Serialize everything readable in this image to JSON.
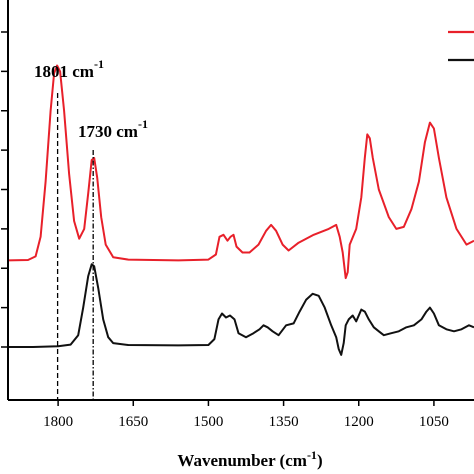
{
  "chart_data": {
    "type": "line",
    "title": "",
    "xlabel": "Wavenumber (cm",
    "xlabel_sup": "-1",
    "xlabel_close": ")",
    "ylabel": "",
    "x_reversed": true,
    "xlim": [
      1900,
      970
    ],
    "ylim": [
      0,
      8
    ],
    "grid": false,
    "legend_placement": "top-right",
    "x_ticks": [
      1800,
      1650,
      1500,
      1350,
      1200,
      1050
    ],
    "x_tick_labels": [
      "1800",
      "1650",
      "1500",
      "1350",
      "1200",
      "1050"
    ],
    "y_ticks": [
      1,
      2,
      3,
      4,
      5,
      6,
      7,
      8
    ],
    "series": [
      {
        "color": "#e8202a",
        "points": [
          [
            1900,
            2.2
          ],
          [
            1860,
            2.21
          ],
          [
            1845,
            2.3
          ],
          [
            1835,
            2.8
          ],
          [
            1825,
            4.2
          ],
          [
            1815,
            6.0
          ],
          [
            1808,
            6.95
          ],
          [
            1802,
            7.15
          ],
          [
            1796,
            7.0
          ],
          [
            1788,
            6.0
          ],
          [
            1778,
            4.4
          ],
          [
            1768,
            3.2
          ],
          [
            1758,
            2.75
          ],
          [
            1748,
            3.0
          ],
          [
            1740,
            3.9
          ],
          [
            1733,
            4.75
          ],
          [
            1728,
            4.8
          ],
          [
            1722,
            4.3
          ],
          [
            1714,
            3.3
          ],
          [
            1705,
            2.6
          ],
          [
            1690,
            2.28
          ],
          [
            1660,
            2.22
          ],
          [
            1560,
            2.2
          ],
          [
            1500,
            2.22
          ],
          [
            1485,
            2.35
          ],
          [
            1478,
            2.8
          ],
          [
            1470,
            2.85
          ],
          [
            1462,
            2.7
          ],
          [
            1456,
            2.8
          ],
          [
            1450,
            2.85
          ],
          [
            1444,
            2.55
          ],
          [
            1432,
            2.4
          ],
          [
            1418,
            2.4
          ],
          [
            1400,
            2.6
          ],
          [
            1385,
            2.95
          ],
          [
            1375,
            3.1
          ],
          [
            1365,
            2.95
          ],
          [
            1352,
            2.6
          ],
          [
            1340,
            2.45
          ],
          [
            1320,
            2.65
          ],
          [
            1290,
            2.85
          ],
          [
            1260,
            3.0
          ],
          [
            1245,
            3.1
          ],
          [
            1238,
            2.8
          ],
          [
            1232,
            2.4
          ],
          [
            1226,
            1.75
          ],
          [
            1222,
            1.9
          ],
          [
            1218,
            2.6
          ],
          [
            1205,
            3.0
          ],
          [
            1195,
            3.8
          ],
          [
            1188,
            4.8
          ],
          [
            1183,
            5.4
          ],
          [
            1178,
            5.3
          ],
          [
            1172,
            4.8
          ],
          [
            1160,
            4.0
          ],
          [
            1140,
            3.3
          ],
          [
            1125,
            3.0
          ],
          [
            1110,
            3.05
          ],
          [
            1095,
            3.5
          ],
          [
            1080,
            4.2
          ],
          [
            1068,
            5.2
          ],
          [
            1058,
            5.7
          ],
          [
            1050,
            5.55
          ],
          [
            1040,
            4.8
          ],
          [
            1025,
            3.8
          ],
          [
            1005,
            3.0
          ],
          [
            985,
            2.6
          ],
          [
            970,
            2.7
          ]
        ]
      },
      {
        "color": "#111111",
        "points": [
          [
            1900,
            0.0
          ],
          [
            1850,
            0.0
          ],
          [
            1800,
            0.02
          ],
          [
            1775,
            0.06
          ],
          [
            1760,
            0.3
          ],
          [
            1750,
            1.0
          ],
          [
            1740,
            1.8
          ],
          [
            1733,
            2.1
          ],
          [
            1728,
            2.05
          ],
          [
            1720,
            1.5
          ],
          [
            1710,
            0.7
          ],
          [
            1700,
            0.25
          ],
          [
            1690,
            0.1
          ],
          [
            1660,
            0.05
          ],
          [
            1560,
            0.04
          ],
          [
            1500,
            0.05
          ],
          [
            1488,
            0.2
          ],
          [
            1480,
            0.7
          ],
          [
            1473,
            0.85
          ],
          [
            1465,
            0.75
          ],
          [
            1457,
            0.8
          ],
          [
            1448,
            0.7
          ],
          [
            1440,
            0.35
          ],
          [
            1425,
            0.25
          ],
          [
            1410,
            0.35
          ],
          [
            1398,
            0.45
          ],
          [
            1390,
            0.55
          ],
          [
            1382,
            0.5
          ],
          [
            1372,
            0.4
          ],
          [
            1360,
            0.3
          ],
          [
            1345,
            0.55
          ],
          [
            1330,
            0.6
          ],
          [
            1318,
            0.9
          ],
          [
            1305,
            1.2
          ],
          [
            1292,
            1.35
          ],
          [
            1280,
            1.3
          ],
          [
            1268,
            1.0
          ],
          [
            1255,
            0.55
          ],
          [
            1245,
            0.25
          ],
          [
            1240,
            -0.05
          ],
          [
            1235,
            -0.2
          ],
          [
            1230,
            0.1
          ],
          [
            1226,
            0.55
          ],
          [
            1220,
            0.7
          ],
          [
            1212,
            0.8
          ],
          [
            1205,
            0.65
          ],
          [
            1195,
            0.95
          ],
          [
            1188,
            0.9
          ],
          [
            1180,
            0.7
          ],
          [
            1170,
            0.5
          ],
          [
            1160,
            0.4
          ],
          [
            1150,
            0.3
          ],
          [
            1135,
            0.35
          ],
          [
            1120,
            0.4
          ],
          [
            1105,
            0.5
          ],
          [
            1090,
            0.55
          ],
          [
            1075,
            0.7
          ],
          [
            1065,
            0.9
          ],
          [
            1058,
            1.0
          ],
          [
            1050,
            0.85
          ],
          [
            1040,
            0.55
          ],
          [
            1025,
            0.45
          ],
          [
            1010,
            0.4
          ],
          [
            995,
            0.45
          ],
          [
            980,
            0.55
          ],
          [
            970,
            0.5
          ]
        ]
      }
    ],
    "annotations": [
      {
        "text": "1801 cm",
        "sup": "-1",
        "x": 1801,
        "style": "dashed"
      },
      {
        "text": "1730 cm",
        "sup": "-1",
        "x": 1730,
        "style": "dash-dot"
      }
    ],
    "legend": [
      {
        "color": "#e8202a"
      },
      {
        "color": "#111111"
      }
    ]
  }
}
